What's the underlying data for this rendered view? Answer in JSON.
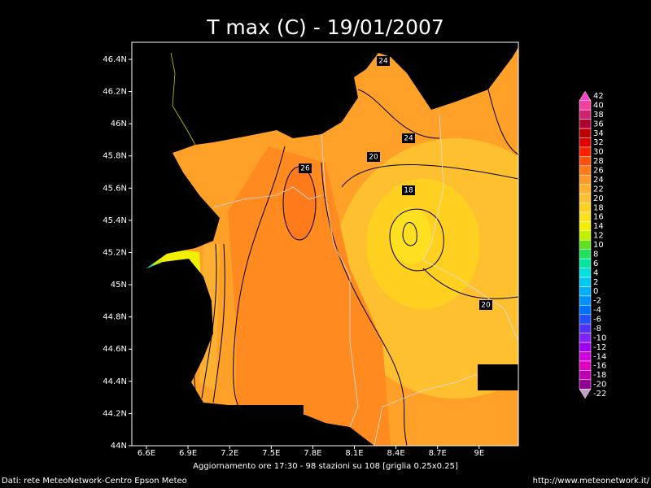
{
  "title": "T max (C) - 19/01/2007",
  "axes": {
    "y_labels": [
      "46.4N",
      "46.2N",
      "46N",
      "45.8N",
      "45.6N",
      "45.4N",
      "45.2N",
      "45N",
      "44.8N",
      "44.6N",
      "44.4N",
      "44.2N",
      "44N"
    ],
    "x_labels": [
      "6.6E",
      "6.9E",
      "7.2E",
      "7.5E",
      "7.8E",
      "8.1E",
      "8.4E",
      "8.7E",
      "9E"
    ]
  },
  "colorbar": {
    "levels": [
      42,
      40,
      38,
      36,
      34,
      32,
      30,
      28,
      26,
      24,
      22,
      20,
      18,
      16,
      14,
      12,
      10,
      8,
      6,
      4,
      2,
      0,
      -2,
      -4,
      -6,
      -8,
      -10,
      -12,
      -14,
      -16,
      -18,
      -20,
      -22
    ],
    "colors": [
      "#ff40c0",
      "#f040a0",
      "#d02070",
      "#b00030",
      "#c00000",
      "#e00000",
      "#ff2000",
      "#ff5010",
      "#ff7a1a",
      "#ff9a28",
      "#ffb030",
      "#ffc030",
      "#ffd020",
      "#ffe020",
      "#f0f000",
      "#c0f000",
      "#60e020",
      "#20e060",
      "#00e8a0",
      "#00e0e0",
      "#00c8f0",
      "#00b0ff",
      "#0090ff",
      "#0070ff",
      "#2050ff",
      "#5030ff",
      "#8020ff",
      "#a000f0",
      "#d000e0",
      "#e000c0",
      "#c000b0",
      "#900090",
      "#c0a0c0"
    ]
  },
  "contour_labels": [
    "24",
    "24",
    "20",
    "26",
    "18",
    "20"
  ],
  "footer": {
    "update": "Aggiornamento ore 17:30 - 98 stazioni su 108 [griglia 0.25x0.25]",
    "source": "Dati: rete MeteoNetwork-Centro Epson Meteo",
    "url": "http://www.meteonetwork.it/"
  }
}
